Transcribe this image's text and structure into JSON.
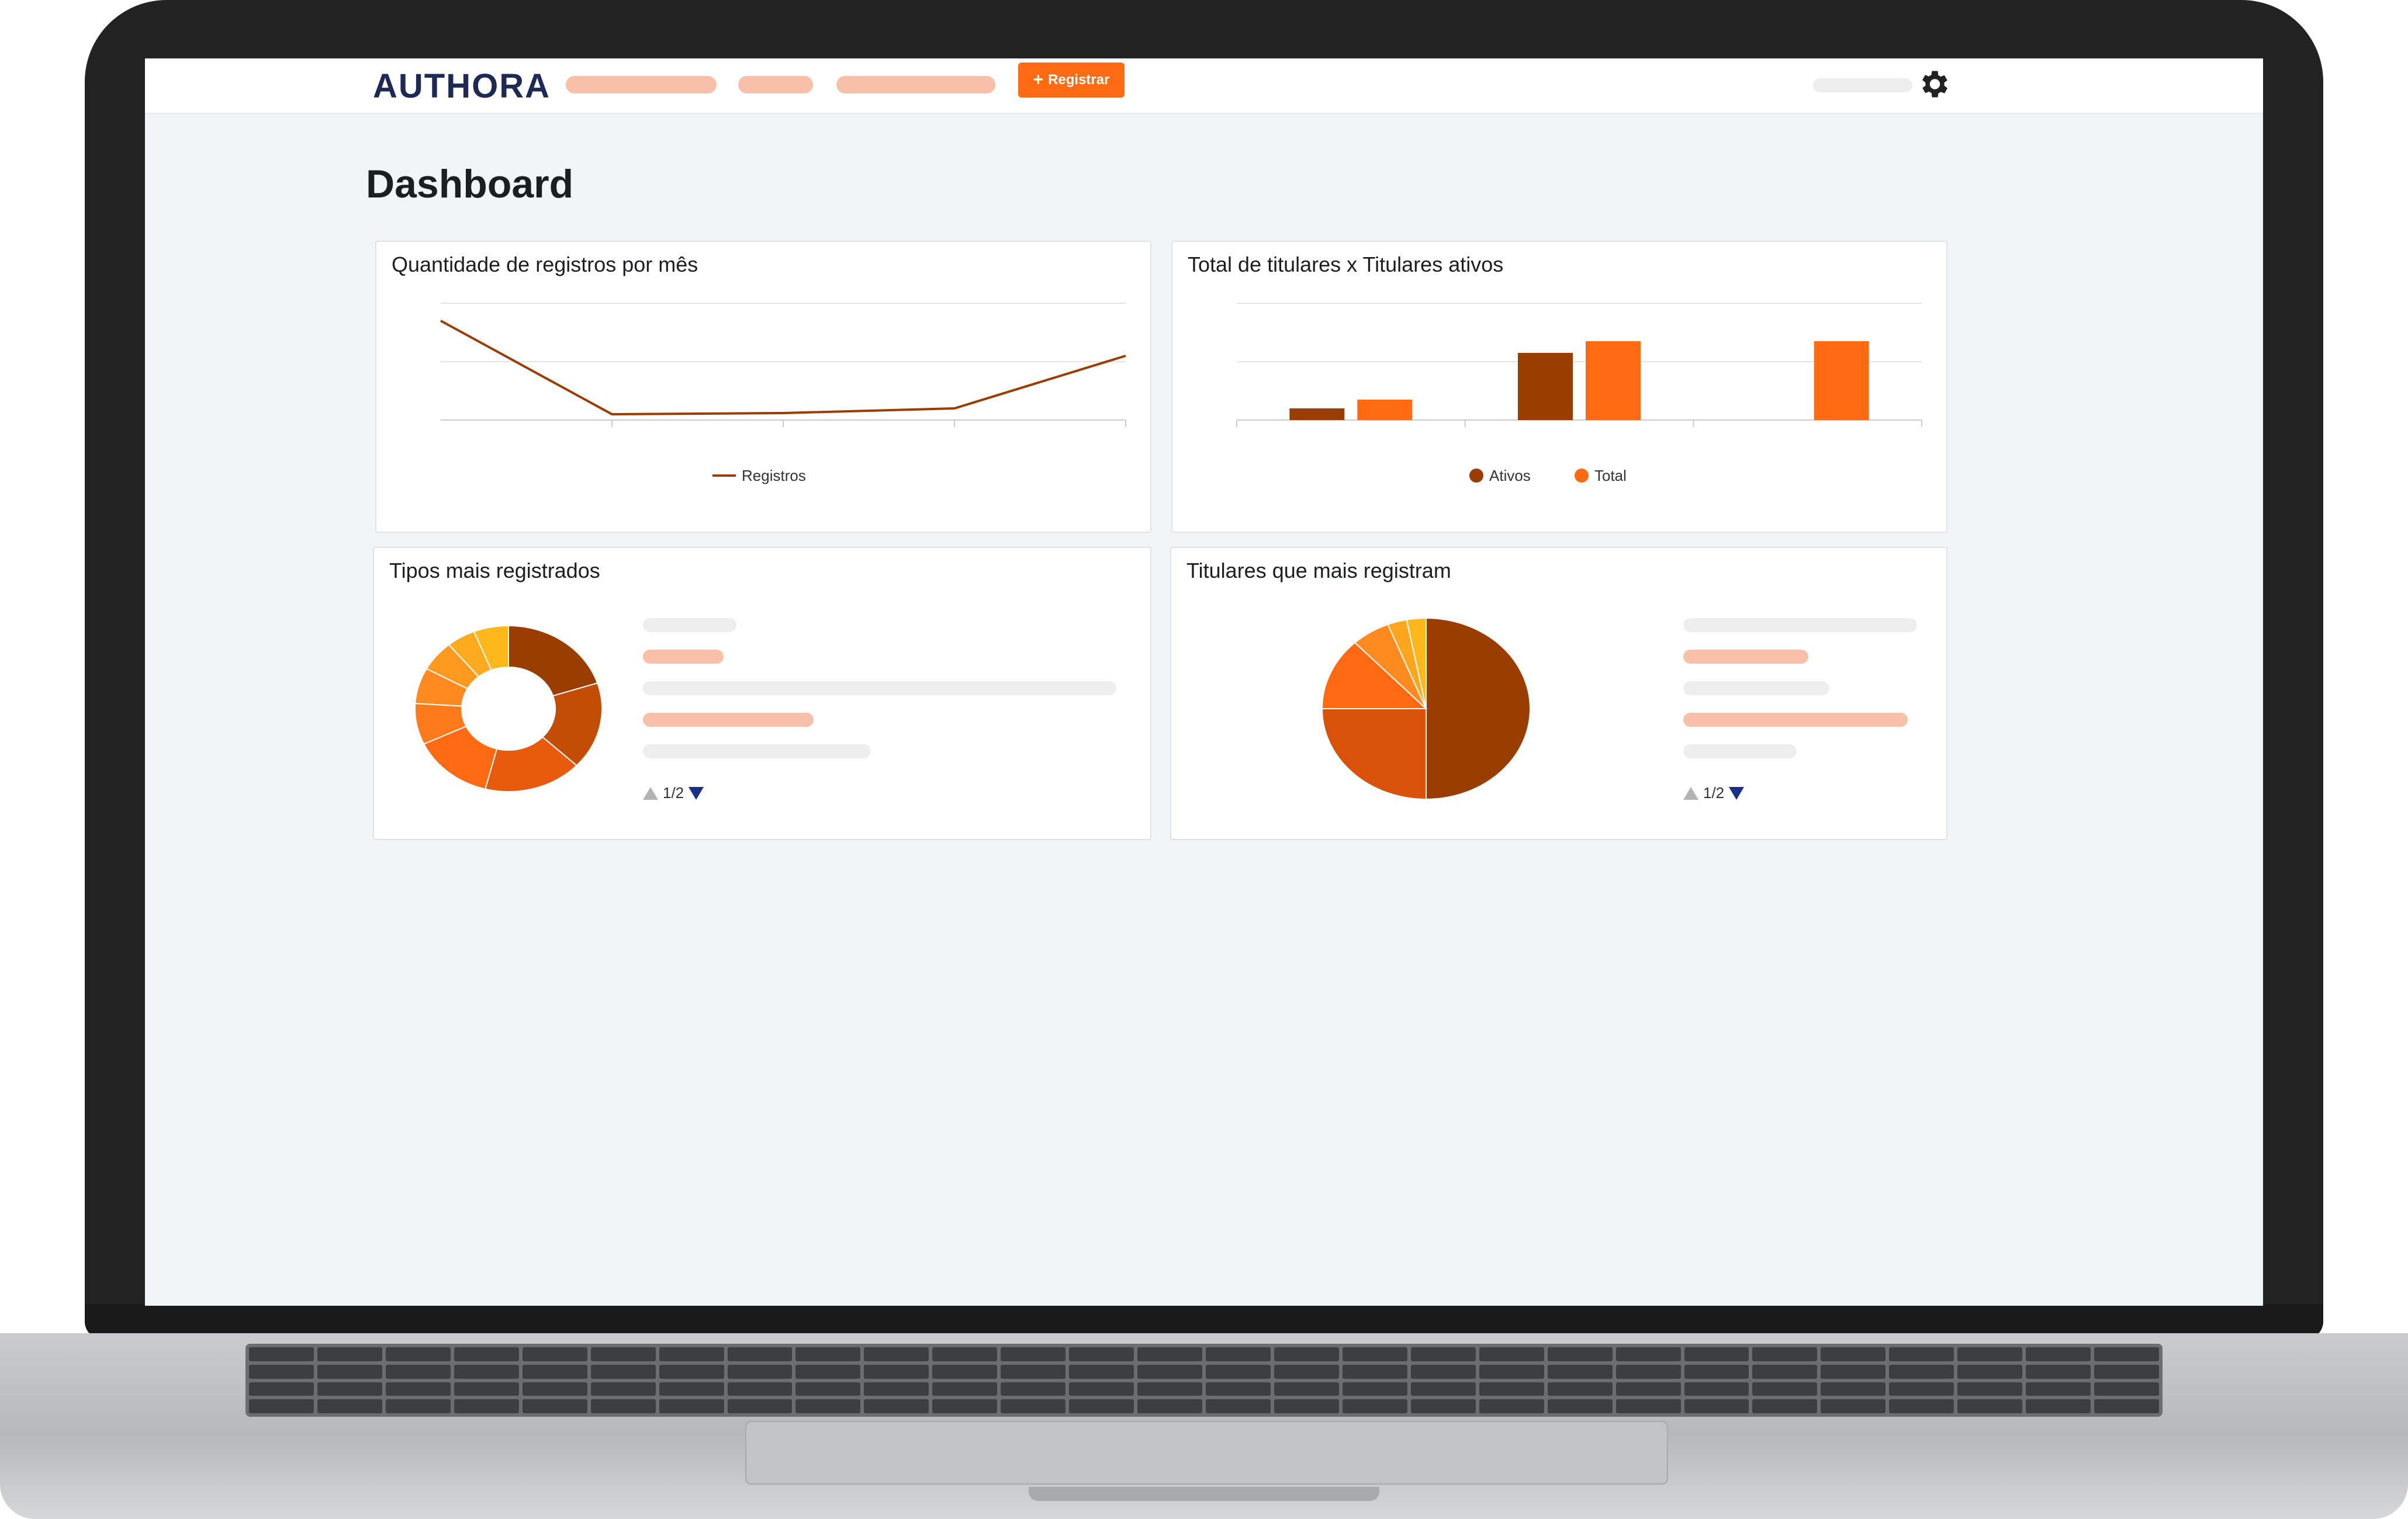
{
  "header": {
    "logo": "AUTHORA",
    "register_label": "Registrar",
    "register_icon": "plus-icon",
    "settings_icon": "gear-icon"
  },
  "page": {
    "title": "Dashboard"
  },
  "colors": {
    "primary": "#ff6a13",
    "dark_orange": "#993d00",
    "logo_navy": "#1d2a56",
    "placeholder_pink": "#f8bfa9",
    "placeholder_gray": "#eeeeee"
  },
  "cards": {
    "registros": {
      "title": "Quantidade de registros por mês"
    },
    "titulares": {
      "title": "Total de titulares x Titulares ativos"
    },
    "tipos": {
      "title": "Tipos mais registrados",
      "pager": "1/2"
    },
    "top_titulares": {
      "title": "Titulares que mais registram",
      "pager": "1/2"
    }
  },
  "chart_data": [
    {
      "type": "line",
      "x": [
        "",
        "",
        "",
        "",
        ""
      ],
      "series": [
        {
          "name": "Registros",
          "values": [
            1.7,
            0.1,
            0.12,
            0.2,
            1.1
          ],
          "color": "#993d00"
        }
      ],
      "ylim": [
        0,
        2
      ],
      "grid": true,
      "legend": "bottom"
    },
    {
      "type": "bar",
      "categories": [
        "",
        "",
        ""
      ],
      "series": [
        {
          "name": "Ativos",
          "values": [
            0.2,
            1.15,
            0
          ],
          "color": "#993d00"
        },
        {
          "name": "Total",
          "values": [
            0.35,
            1.35,
            1.35
          ],
          "color": "#ff6a13"
        }
      ],
      "ylim": [
        0,
        2
      ],
      "grid": true,
      "legend": "bottom"
    },
    {
      "type": "pie",
      "donut": true,
      "values": [
        20,
        17,
        17,
        14,
        8,
        7,
        6,
        5,
        6
      ],
      "colors": [
        "#993d00",
        "#c44d06",
        "#e85a0c",
        "#ff6a13",
        "#ff7a1a",
        "#ff8a1f",
        "#ff9a20",
        "#ffaa1f",
        "#ffb81c"
      ]
    },
    {
      "type": "pie",
      "donut": false,
      "values": [
        50,
        25,
        13,
        6,
        3,
        3
      ],
      "colors": [
        "#993d00",
        "#d9520a",
        "#ff6a13",
        "#ff8a1f",
        "#ffa51e",
        "#ffb81c"
      ]
    }
  ]
}
